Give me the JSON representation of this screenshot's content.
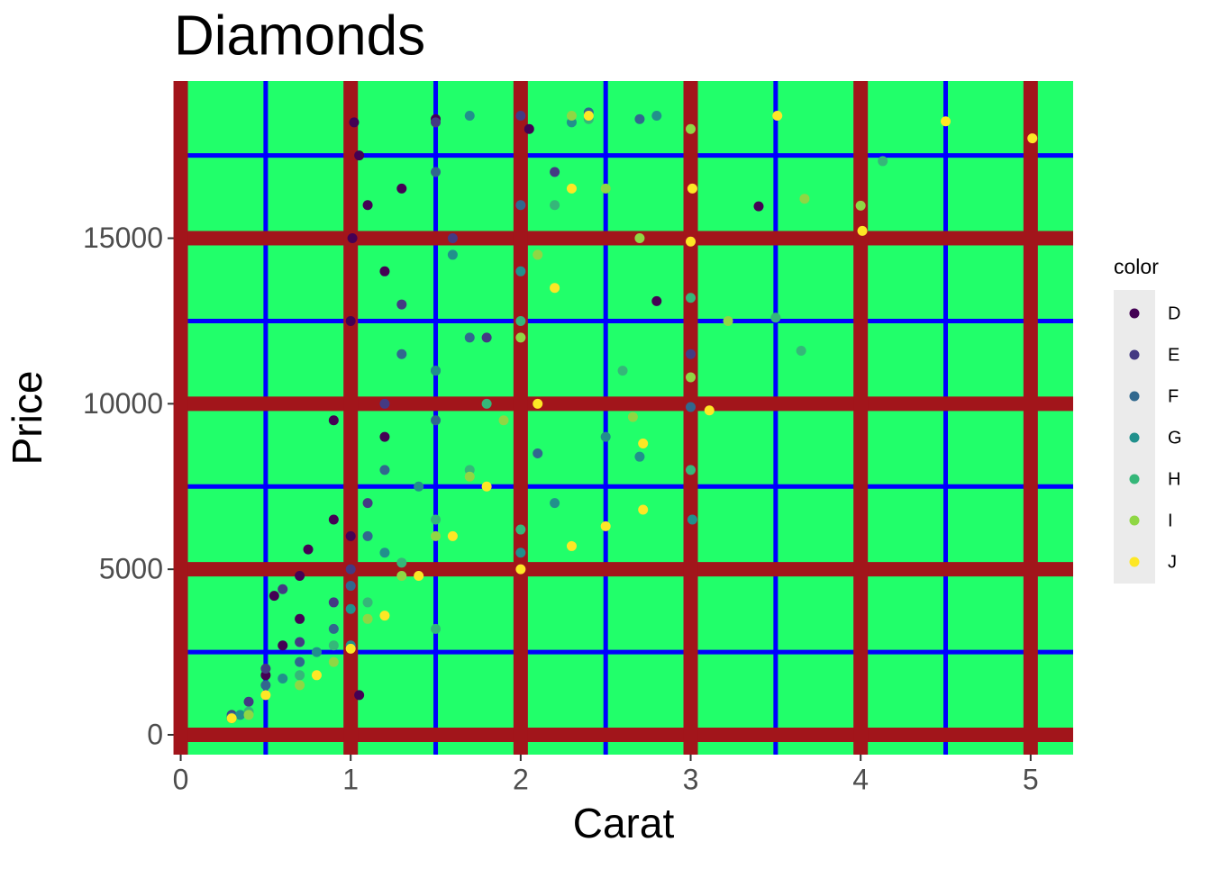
{
  "chart_data": {
    "type": "scatter",
    "title": "Diamonds",
    "x_label": "Carat",
    "y_label": "Price",
    "legend_title": "color",
    "legend_position": "right",
    "xlim": [
      -0.04,
      5.25
    ],
    "ylim": [
      -599,
      19748
    ],
    "xticks": [
      0,
      1,
      2,
      3,
      4,
      5
    ],
    "yticks": [
      0,
      5000,
      10000,
      15000
    ],
    "x_minor_breaks": [
      0.5,
      1.5,
      2.5,
      3.5,
      4.5
    ],
    "y_minor_breaks": [
      2500,
      7500,
      12500,
      17500
    ],
    "grid": true,
    "panel_color": "#21FF6A",
    "major_grid_color": "#A2151B",
    "minor_grid_color": "#0000FF",
    "series": [
      {
        "name": "D",
        "color": "#440154",
        "x": [
          0.3,
          0.5,
          0.6,
          0.7,
          0.55,
          0.7,
          0.75,
          0.9,
          0.9,
          1.0,
          1.01,
          1.02,
          1.05,
          1.1,
          1.2,
          1.3,
          1.5,
          1.2,
          1.0,
          2.05,
          2.8,
          3.4,
          1.05
        ],
        "y": [
          500,
          1800,
          2700,
          3500,
          4200,
          4800,
          5600,
          6500,
          9500,
          12500,
          15000,
          18500,
          17500,
          16000,
          14000,
          16500,
          18600,
          9000,
          6000,
          18300,
          13100,
          15964,
          1200
        ]
      },
      {
        "name": "E",
        "color": "#443A83",
        "x": [
          0.3,
          0.4,
          0.5,
          0.7,
          0.9,
          1.0,
          1.1,
          1.2,
          1.3,
          1.5,
          1.6,
          1.5,
          2.0,
          2.2,
          1.8,
          3.0,
          0.6
        ],
        "y": [
          600,
          1000,
          2000,
          2800,
          4000,
          5000,
          7000,
          10000,
          13000,
          11000,
          15000,
          18500,
          18700,
          17000,
          12000,
          11500,
          4400
        ]
      },
      {
        "name": "F",
        "color": "#31688E",
        "x": [
          0.3,
          0.5,
          0.7,
          0.9,
          1.0,
          1.1,
          1.2,
          1.5,
          1.7,
          1.5,
          2.0,
          2.4,
          2.7,
          3.0,
          2.1,
          1.3
        ],
        "y": [
          550,
          1500,
          2200,
          3200,
          4500,
          6000,
          8000,
          9500,
          12000,
          17000,
          16000,
          18800,
          18600,
          9900,
          8500,
          11500
        ]
      },
      {
        "name": "G",
        "color": "#21908C",
        "x": [
          0.35,
          0.6,
          0.8,
          1.0,
          1.2,
          1.4,
          1.5,
          1.6,
          1.7,
          2.0,
          2.3,
          2.5,
          2.7,
          2.2,
          2.0,
          1.0,
          2.8,
          3.01
        ],
        "y": [
          600,
          1700,
          2500,
          3800,
          5500,
          7500,
          11000,
          14500,
          18700,
          14000,
          18500,
          9000,
          8400,
          7000,
          5500,
          2700,
          18700,
          6500
        ]
      },
      {
        "name": "H",
        "color": "#35B779",
        "x": [
          0.4,
          0.7,
          0.9,
          1.1,
          1.3,
          1.5,
          1.7,
          1.8,
          2.0,
          2.2,
          2.4,
          2.0,
          2.6,
          3.0,
          3.5,
          3.65,
          4.13,
          1.5,
          3.0
        ],
        "y": [
          700,
          1800,
          2700,
          4000,
          5200,
          6500,
          8000,
          10000,
          12500,
          16000,
          18600,
          6200,
          11000,
          13200,
          12600,
          11600,
          17329,
          3200,
          8000
        ]
      },
      {
        "name": "I",
        "color": "#8FD744",
        "x": [
          0.4,
          0.7,
          0.9,
          1.1,
          1.3,
          1.5,
          1.7,
          1.9,
          2.0,
          2.1,
          2.3,
          2.5,
          2.7,
          3.0,
          3.22,
          3.67,
          4.0,
          2.66,
          3.0
        ],
        "y": [
          600,
          1500,
          2200,
          3500,
          4800,
          6000,
          7800,
          9500,
          12000,
          14500,
          18700,
          16500,
          15000,
          18300,
          12500,
          16193,
          15984,
          9600,
          10800
        ]
      },
      {
        "name": "J",
        "color": "#FDE725",
        "x": [
          0.3,
          0.5,
          0.8,
          1.0,
          1.2,
          1.4,
          1.6,
          1.8,
          2.0,
          2.1,
          2.2,
          2.3,
          2.4,
          2.5,
          2.72,
          2.72,
          3.0,
          3.11,
          3.01,
          3.51,
          4.01,
          4.5,
          5.01,
          2.3
        ],
        "y": [
          500,
          1200,
          1800,
          2600,
          3600,
          4800,
          6000,
          7500,
          5000,
          10000,
          13500,
          16500,
          18700,
          6300,
          6800,
          8800,
          14900,
          9800,
          16500,
          18701,
          15223,
          18531,
          18018,
          5700
        ]
      }
    ]
  }
}
